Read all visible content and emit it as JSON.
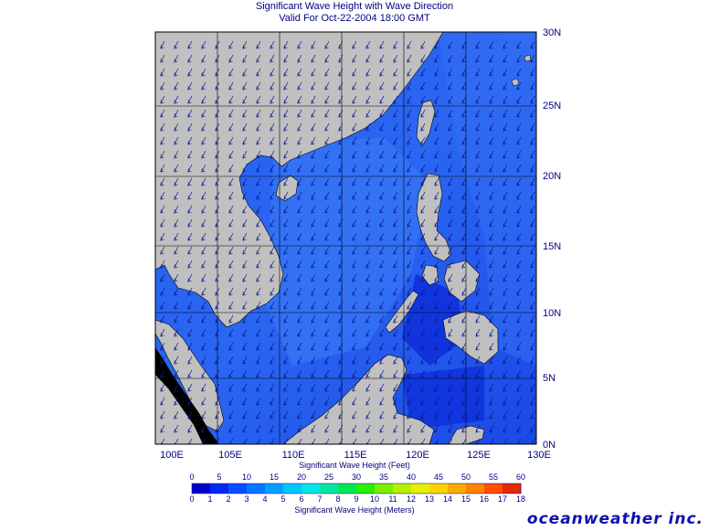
{
  "title_line1": "Significant Wave Height with Wave Direction",
  "title_line2": "Valid For Oct-22-2004 18:00 GMT",
  "x_ticks": [
    "100E",
    "105E",
    "110E",
    "115E",
    "120E",
    "125E",
    "130E"
  ],
  "y_ticks": [
    "0N",
    "5N",
    "10N",
    "15N",
    "20N",
    "25N",
    "30N"
  ],
  "colorbar": {
    "feet_title": "Significant Wave Height (Feet)",
    "meters_title": "Significant Wave Height (Meters)",
    "feet_labels": [
      "0",
      "5",
      "10",
      "15",
      "20",
      "25",
      "30",
      "35",
      "40",
      "45",
      "50",
      "55",
      "60"
    ],
    "meter_labels": [
      "0",
      "1",
      "2",
      "3",
      "4",
      "5",
      "6",
      "7",
      "8",
      "9",
      "10",
      "11",
      "12",
      "13",
      "14",
      "15",
      "16",
      "17",
      "18"
    ],
    "colors": [
      "#0000c8",
      "#0028f0",
      "#0050ff",
      "#0078ff",
      "#00a0ff",
      "#00c8ff",
      "#00e6e6",
      "#00e6a0",
      "#00e650",
      "#28f000",
      "#78f000",
      "#b4f000",
      "#e6f000",
      "#ffd200",
      "#ffaa00",
      "#ff8200",
      "#ff5000",
      "#e62800"
    ]
  },
  "brand": "oceanweather inc.",
  "colors": {
    "land": "#c0c0c0",
    "sea_deep": "#0a32e6",
    "sea_mid": "#1e5af0",
    "sea_light": "#3c78f5",
    "arrow": "#0a1a8c"
  }
}
